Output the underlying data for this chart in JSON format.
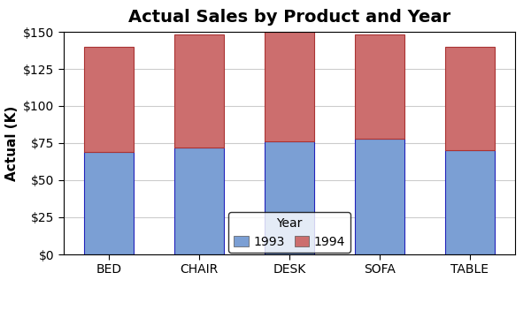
{
  "title": "Actual Sales by Product and Year",
  "ylabel": "Actual (K)",
  "categories": [
    "BED",
    "CHAIR",
    "DESK",
    "SOFA",
    "TABLE"
  ],
  "values_1993": [
    69,
    72,
    76,
    78,
    70
  ],
  "values_1994": [
    71,
    76,
    74,
    70,
    70
  ],
  "color_1993": "#7B9FD4",
  "color_1994": "#CC6E6E",
  "ylim": [
    0,
    150
  ],
  "yticks": [
    0,
    25,
    50,
    75,
    100,
    125,
    150
  ],
  "bar_edgecolor_1993": "#2222BB",
  "bar_edgecolor_1994": "#AA3333",
  "bar_width": 0.55,
  "plot_bg_color": "#FFFFFF",
  "fig_bg_color": "#FFFFFF",
  "grid_color": "#CCCCCC",
  "legend_label": "Year",
  "legend_1993": "1993",
  "legend_1994": "1994",
  "title_fontsize": 14,
  "axis_fontsize": 11,
  "tick_fontsize": 10,
  "legend_fontsize": 10
}
